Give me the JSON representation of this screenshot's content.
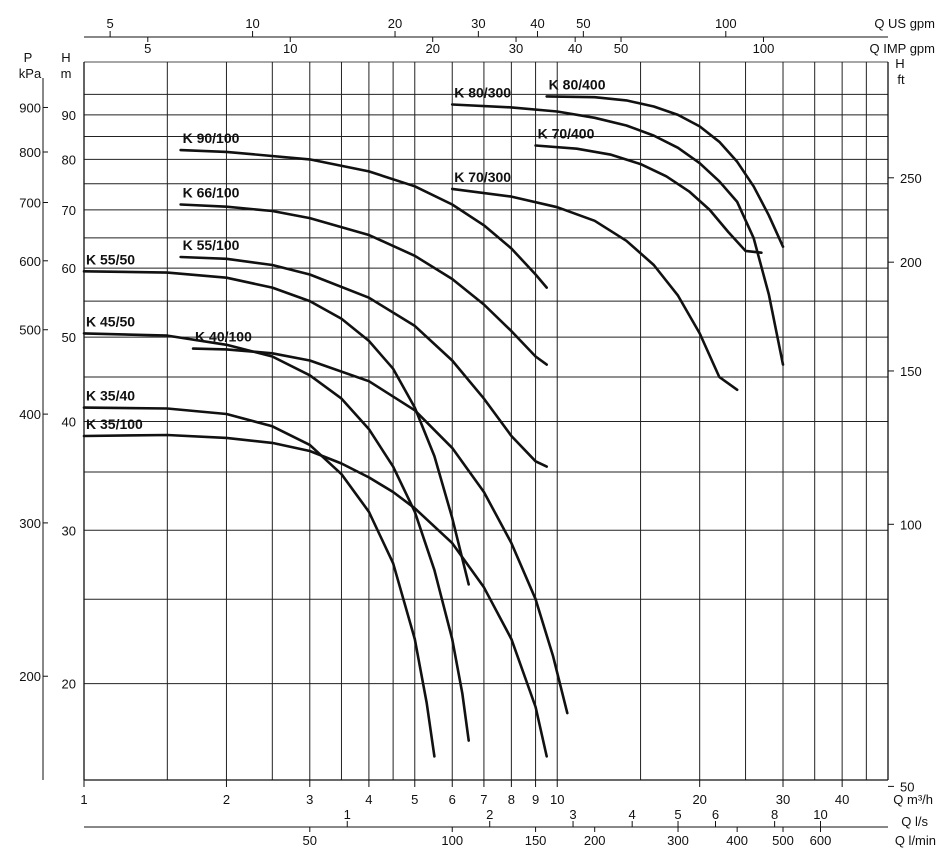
{
  "chart_data": {
    "type": "line",
    "x_axis": {
      "scale": "log",
      "label": "Q m³/h",
      "range": [
        1,
        50
      ],
      "ticks": [
        "1",
        "2",
        "3",
        "4",
        "5",
        "6",
        "7",
        "8",
        "9",
        "10",
        "20",
        "30",
        "40"
      ]
    },
    "y_axis": {
      "scale": "log",
      "label_top": "H",
      "label_unit": "m",
      "range": [
        15.5,
        100
      ],
      "ticks": [
        "20",
        "30",
        "40",
        "50",
        "60",
        "70",
        "80",
        "90"
      ]
    },
    "secondary_axes": {
      "pressure": {
        "label_top": "P",
        "label_unit": "kPa",
        "ticks": [
          "200",
          "300",
          "400",
          "500",
          "600",
          "700",
          "800",
          "900"
        ]
      },
      "head_ft": {
        "label_top": "H",
        "label_unit": "ft",
        "ticks": [
          "50",
          "100",
          "150",
          "200",
          "250"
        ]
      },
      "q_us_gpm": {
        "label": "Q US gpm",
        "ticks": [
          "5",
          "10",
          "20",
          "30",
          "40",
          "50",
          "100"
        ]
      },
      "q_imp_gpm": {
        "label": "Q IMP gpm",
        "ticks": [
          "5",
          "10",
          "20",
          "30",
          "40",
          "50",
          "100"
        ]
      },
      "q_ls": {
        "label": "Q l/s",
        "ticks": [
          "1",
          "2",
          "3",
          "4",
          "5",
          "6",
          "8",
          "10"
        ]
      },
      "q_lmin": {
        "label": "Q l/min",
        "ticks": [
          "50",
          "100",
          "150",
          "200",
          "300",
          "400",
          "500",
          "600"
        ]
      }
    },
    "series": [
      {
        "name": "K 35/100",
        "x": [
          1,
          1.5,
          2,
          2.5,
          3,
          3.5,
          4,
          4.5,
          5,
          6,
          7,
          8,
          9,
          9.5
        ],
        "y": [
          38.5,
          38.6,
          38.3,
          37.8,
          37.0,
          35.8,
          34.5,
          33.2,
          31.8,
          29.0,
          25.8,
          22.5,
          18.8,
          16.5
        ]
      },
      {
        "name": "K 35/40",
        "x": [
          1,
          1.5,
          2,
          2.5,
          3,
          3.5,
          4,
          4.5,
          5,
          5.3,
          5.5
        ],
        "y": [
          41.5,
          41.4,
          40.8,
          39.5,
          37.6,
          34.8,
          31.5,
          27.5,
          22.5,
          19.0,
          16.5
        ]
      },
      {
        "name": "K 45/50",
        "x": [
          1,
          1.5,
          2,
          2.5,
          3,
          3.5,
          4,
          4.5,
          5,
          5.5,
          6,
          6.3,
          6.5
        ],
        "y": [
          50.5,
          50.2,
          49.0,
          47.5,
          45.2,
          42.5,
          39.2,
          35.5,
          31.5,
          27.0,
          22.5,
          19.5,
          17.2
        ]
      },
      {
        "name": "K 40/100",
        "x": [
          1.7,
          2,
          2.5,
          3,
          4,
          5,
          6,
          7,
          8,
          9,
          9.8,
          10.5
        ],
        "y": [
          48.5,
          48.4,
          47.9,
          47.0,
          44.5,
          41.2,
          37.3,
          33.2,
          29.0,
          25.0,
          21.5,
          18.5
        ]
      },
      {
        "name": "K 55/50",
        "x": [
          1,
          1.5,
          2,
          2.5,
          3,
          3.5,
          4,
          4.5,
          5,
          5.5,
          6,
          6.5
        ],
        "y": [
          59.5,
          59.3,
          58.5,
          57.0,
          55.0,
          52.5,
          49.5,
          46.0,
          41.5,
          36.5,
          31.0,
          26.0
        ]
      },
      {
        "name": "K 55/100",
        "x": [
          1.6,
          2,
          2.5,
          3,
          4,
          5,
          6,
          7,
          8,
          9,
          9.5
        ],
        "y": [
          61.8,
          61.5,
          60.5,
          59.0,
          55.5,
          51.5,
          47.0,
          42.5,
          38.5,
          36.0,
          35.5
        ]
      },
      {
        "name": "K 66/100",
        "x": [
          1.6,
          2,
          2.5,
          3,
          4,
          5,
          6,
          7,
          8,
          9,
          9.5
        ],
        "y": [
          71.0,
          70.6,
          69.8,
          68.5,
          65.5,
          62.0,
          58.3,
          54.5,
          50.8,
          47.5,
          46.5
        ]
      },
      {
        "name": "K 90/100",
        "x": [
          1.6,
          2,
          3,
          4,
          5,
          6,
          7,
          8,
          9,
          9.5
        ],
        "y": [
          82.0,
          81.6,
          80.0,
          77.5,
          74.5,
          71.0,
          67.2,
          63.2,
          59.0,
          57.0
        ]
      },
      {
        "name": "K 70/300",
        "x": [
          6,
          8,
          10,
          12,
          14,
          16,
          18,
          20,
          22,
          24
        ],
        "y": [
          74.0,
          72.5,
          70.5,
          68.0,
          64.5,
          60.5,
          55.8,
          50.5,
          45.0,
          43.5
        ]
      },
      {
        "name": "K 70/400",
        "x": [
          9,
          11,
          13,
          15,
          17,
          19,
          21,
          23,
          25,
          27
        ],
        "y": [
          83.0,
          82.3,
          81.0,
          79.0,
          76.5,
          73.5,
          70.0,
          66.0,
          62.8,
          62.5
        ]
      },
      {
        "name": "K 80/300",
        "x": [
          6,
          8,
          10,
          12,
          14,
          16,
          18,
          20,
          22,
          24,
          26,
          28,
          30
        ],
        "y": [
          92.5,
          91.8,
          90.8,
          89.3,
          87.5,
          85.2,
          82.5,
          79.2,
          75.5,
          71.5,
          65.0,
          56.0,
          46.5
        ]
      },
      {
        "name": "K 80/400",
        "x": [
          9.5,
          12,
          14,
          16,
          18,
          20,
          22,
          24,
          26,
          28,
          30
        ],
        "y": [
          94.5,
          94.3,
          93.5,
          92.0,
          90.0,
          87.3,
          83.8,
          79.5,
          74.5,
          69.0,
          63.5
        ]
      }
    ]
  }
}
